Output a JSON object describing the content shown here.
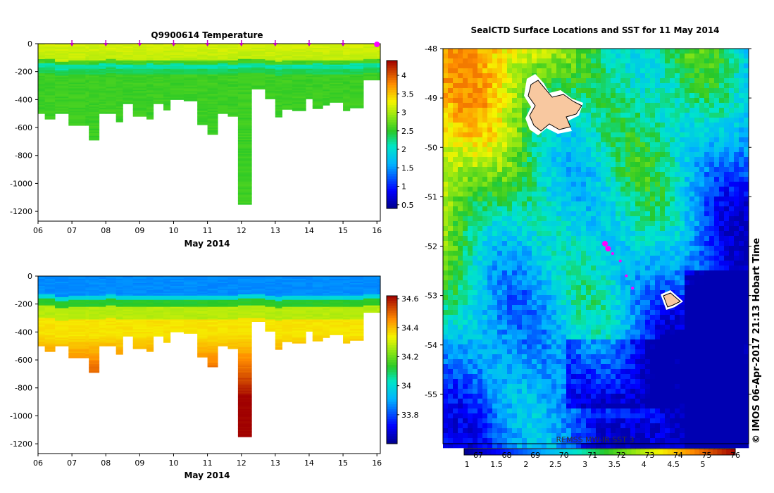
{
  "chart_data": [
    {
      "type": "heatmap",
      "title": "Q9900614  Temperature",
      "xlabel": "May 2014",
      "x_ticks": [
        "06",
        "07",
        "08",
        "09",
        "10",
        "11",
        "12",
        "13",
        "14",
        "15",
        "16"
      ],
      "y_ticks": [
        "0",
        "-200",
        "-400",
        "-600",
        "-800",
        "-1000",
        "-1200"
      ],
      "ylim": [
        -1270,
        0
      ],
      "colorbar_ticks": [
        "0.5",
        "1",
        "1.5",
        "2",
        "2.5",
        "3",
        "3.5",
        "4"
      ],
      "colorbar_range": [
        0.4,
        4.4
      ],
      "surface_markers_day": [
        7,
        8,
        9,
        10,
        11,
        12,
        13,
        14,
        15,
        16
      ],
      "profiles": [
        {
          "day": 6.0,
          "depth": 500,
          "thermo": 150
        },
        {
          "day": 6.2,
          "depth": 540,
          "thermo": 150
        },
        {
          "day": 6.5,
          "depth": 500,
          "thermo": 165
        },
        {
          "day": 6.9,
          "depth": 585,
          "thermo": 160
        },
        {
          "day": 7.4,
          "depth": 585,
          "thermo": 158
        },
        {
          "day": 7.5,
          "depth": 690,
          "thermo": 160
        },
        {
          "day": 7.8,
          "depth": 500,
          "thermo": 155
        },
        {
          "day": 8.0,
          "depth": 500,
          "thermo": 150
        },
        {
          "day": 8.3,
          "depth": 560,
          "thermo": 158
        },
        {
          "day": 8.5,
          "depth": 430,
          "thermo": 160
        },
        {
          "day": 8.8,
          "depth": 520,
          "thermo": 158
        },
        {
          "day": 9.2,
          "depth": 540,
          "thermo": 155
        },
        {
          "day": 9.4,
          "depth": 430,
          "thermo": 160
        },
        {
          "day": 9.7,
          "depth": 475,
          "thermo": 158
        },
        {
          "day": 9.9,
          "depth": 400,
          "thermo": 155
        },
        {
          "day": 10.3,
          "depth": 410,
          "thermo": 160
        },
        {
          "day": 10.7,
          "depth": 580,
          "thermo": 158
        },
        {
          "day": 11.0,
          "depth": 650,
          "thermo": 160
        },
        {
          "day": 11.3,
          "depth": 500,
          "thermo": 155
        },
        {
          "day": 11.6,
          "depth": 520,
          "thermo": 160
        },
        {
          "day": 11.9,
          "depth": 1150,
          "thermo": 150
        },
        {
          "day": 12.3,
          "depth": 325,
          "thermo": 150
        },
        {
          "day": 12.7,
          "depth": 395,
          "thermo": 160
        },
        {
          "day": 13.0,
          "depth": 525,
          "thermo": 165
        },
        {
          "day": 13.2,
          "depth": 470,
          "thermo": 160
        },
        {
          "day": 13.5,
          "depth": 480,
          "thermo": 158
        },
        {
          "day": 13.9,
          "depth": 395,
          "thermo": 160
        },
        {
          "day": 14.1,
          "depth": 465,
          "thermo": 155
        },
        {
          "day": 14.4,
          "depth": 440,
          "thermo": 160
        },
        {
          "day": 14.6,
          "depth": 420,
          "thermo": 158
        },
        {
          "day": 15.0,
          "depth": 480,
          "thermo": 160
        },
        {
          "day": 15.2,
          "depth": 460,
          "thermo": 155
        },
        {
          "day": 15.6,
          "depth": 260,
          "thermo": 150
        },
        {
          "day": 16.0,
          "depth": 260,
          "thermo": 150
        }
      ]
    },
    {
      "type": "heatmap",
      "title": "",
      "xlabel": "May 2014",
      "x_ticks": [
        "06",
        "07",
        "08",
        "09",
        "10",
        "11",
        "12",
        "13",
        "14",
        "15",
        "16"
      ],
      "y_ticks": [
        "0",
        "-200",
        "-400",
        "-600",
        "-800",
        "-1000",
        "-1200"
      ],
      "ylim": [
        -1270,
        0
      ],
      "colorbar_ticks": [
        "33.8",
        "34",
        "34.2",
        "34.4",
        "34.6"
      ],
      "colorbar_range": [
        33.6,
        34.62
      ]
    },
    {
      "type": "heatmap",
      "title": "SealCTD Surface Locations and SST for 11 May 2014",
      "y_ticks": [
        "-48",
        "-49",
        "-50",
        "-51",
        "-52",
        "-53",
        "-54",
        "-55"
      ],
      "ylim": [
        -56.0,
        -48.0
      ],
      "colorbar_ticks": [
        "1",
        "1.5",
        "2",
        "2.5",
        "3",
        "3.5",
        "4",
        "4.5",
        "5"
      ],
      "colorbar_secondary_ticks": [
        "67",
        "68",
        "69",
        "70",
        "71",
        "72",
        "73",
        "74",
        "75",
        "76"
      ],
      "colorbar_range": [
        0.95,
        5.55
      ],
      "source_label": "REMSS MW-IR SST 3",
      "track_positions": [
        {
          "lon_frac": 0.53,
          "lat": -51.95
        },
        {
          "lon_frac": 0.54,
          "lat": -52.05
        },
        {
          "lon_frac": 0.555,
          "lat": -52.15
        },
        {
          "lon_frac": 0.58,
          "lat": -52.3
        },
        {
          "lon_frac": 0.6,
          "lat": -52.6
        },
        {
          "lon_frac": 0.62,
          "lat": -52.85
        }
      ]
    }
  ],
  "credit": "© IMOS 06-Apr-2017 21:13 Hobart Time"
}
